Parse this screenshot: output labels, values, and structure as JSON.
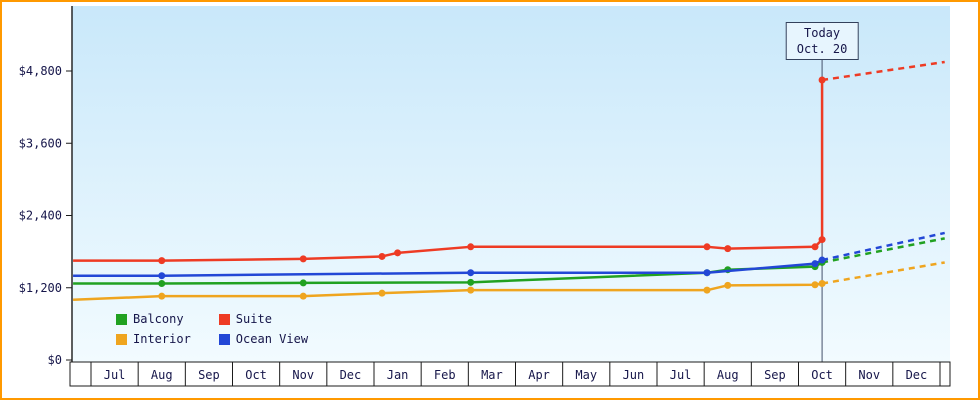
{
  "window": {
    "frame_color": "#ff9900"
  },
  "chart_data": {
    "type": "line",
    "title": "",
    "x_categories": [
      "Jul",
      "Aug",
      "Sep",
      "Oct",
      "Nov",
      "Dec",
      "Jan",
      "Feb",
      "Mar",
      "Apr",
      "May",
      "Jun",
      "Jul",
      "Aug",
      "Sep",
      "Oct",
      "Nov",
      "Dec"
    ],
    "y_tick_values": [
      0,
      1200,
      2400,
      3600,
      4800
    ],
    "y_tick_labels": [
      "$0",
      "$1,200",
      "$2,400",
      "$3,600",
      "$4,800"
    ],
    "ylim": [
      0,
      5700
    ],
    "grid": false,
    "legend_position": "bottom-left-inside",
    "background_gradient": [
      "#c9e8fa",
      "#f2fbff"
    ],
    "today_marker": {
      "label": "Today",
      "date": "Oct. 20",
      "month_index": 15
    },
    "series": [
      {
        "id": "interior",
        "name": "Interior",
        "color": "#efa51f",
        "style": "solid-then-dashed-forecast",
        "points": [
          [
            -0.88,
            1000
          ],
          [
            1,
            1060
          ],
          [
            4,
            1060
          ],
          [
            5.67,
            1110
          ],
          [
            7.55,
            1160
          ],
          [
            12.56,
            1160
          ],
          [
            13,
            1240
          ],
          [
            14.85,
            1250
          ],
          [
            15,
            1270
          ]
        ],
        "dots": [
          [
            1,
            1060
          ],
          [
            4,
            1060
          ],
          [
            5.67,
            1110
          ],
          [
            7.55,
            1160
          ],
          [
            12.56,
            1160
          ],
          [
            13,
            1240
          ],
          [
            14.85,
            1250
          ],
          [
            15,
            1270
          ]
        ],
        "forecast": [
          [
            15,
            1270
          ],
          [
            17.6,
            1620
          ]
        ]
      },
      {
        "id": "balcony",
        "name": "Balcony",
        "color": "#21a121",
        "style": "solid-then-dashed-forecast",
        "points": [
          [
            -0.88,
            1270
          ],
          [
            1,
            1270
          ],
          [
            4,
            1280
          ],
          [
            7.55,
            1290
          ],
          [
            12.56,
            1450
          ],
          [
            13,
            1500
          ],
          [
            14.85,
            1550
          ],
          [
            15,
            1620
          ]
        ],
        "dots": [
          [
            1,
            1270
          ],
          [
            4,
            1280
          ],
          [
            7.55,
            1290
          ],
          [
            12.56,
            1450
          ],
          [
            13,
            1500
          ],
          [
            14.85,
            1550
          ],
          [
            15,
            1620
          ]
        ],
        "forecast": [
          [
            15,
            1620
          ],
          [
            17.6,
            2020
          ]
        ]
      },
      {
        "id": "ocean_view",
        "name": "Ocean View",
        "color": "#2247d6",
        "style": "solid-then-dashed-forecast",
        "points": [
          [
            -0.88,
            1400
          ],
          [
            1,
            1400
          ],
          [
            7.55,
            1450
          ],
          [
            12.56,
            1450
          ],
          [
            14.85,
            1600
          ],
          [
            15,
            1660
          ]
        ],
        "dots": [
          [
            1,
            1400
          ],
          [
            7.55,
            1450
          ],
          [
            12.56,
            1450
          ],
          [
            14.85,
            1600
          ],
          [
            15,
            1660
          ]
        ],
        "forecast": [
          [
            15,
            1660
          ],
          [
            17.6,
            2110
          ]
        ]
      },
      {
        "id": "suite",
        "name": "Suite",
        "color": "#ee3b24",
        "style": "solid-then-dashed-forecast",
        "points": [
          [
            -0.88,
            1650
          ],
          [
            1,
            1650
          ],
          [
            4,
            1680
          ],
          [
            5.67,
            1720
          ],
          [
            6,
            1780
          ],
          [
            7.55,
            1880
          ],
          [
            12.56,
            1880
          ],
          [
            13,
            1850
          ],
          [
            14.85,
            1880
          ],
          [
            15,
            2000
          ],
          [
            15,
            4650
          ]
        ],
        "dots": [
          [
            1,
            1650
          ],
          [
            4,
            1680
          ],
          [
            5.67,
            1720
          ],
          [
            6,
            1780
          ],
          [
            7.55,
            1880
          ],
          [
            12.56,
            1880
          ],
          [
            13,
            1850
          ],
          [
            14.85,
            1880
          ],
          [
            15,
            2000
          ],
          [
            15,
            4650
          ]
        ],
        "forecast": [
          [
            15,
            4650
          ],
          [
            17.6,
            4950
          ]
        ]
      }
    ],
    "legend": {
      "items": [
        {
          "label": "Balcony",
          "color": "#21a121"
        },
        {
          "label": "Suite",
          "color": "#ee3b24"
        },
        {
          "label": "Interior",
          "color": "#efa51f"
        },
        {
          "label": "Ocean View",
          "color": "#2247d6"
        }
      ]
    }
  }
}
